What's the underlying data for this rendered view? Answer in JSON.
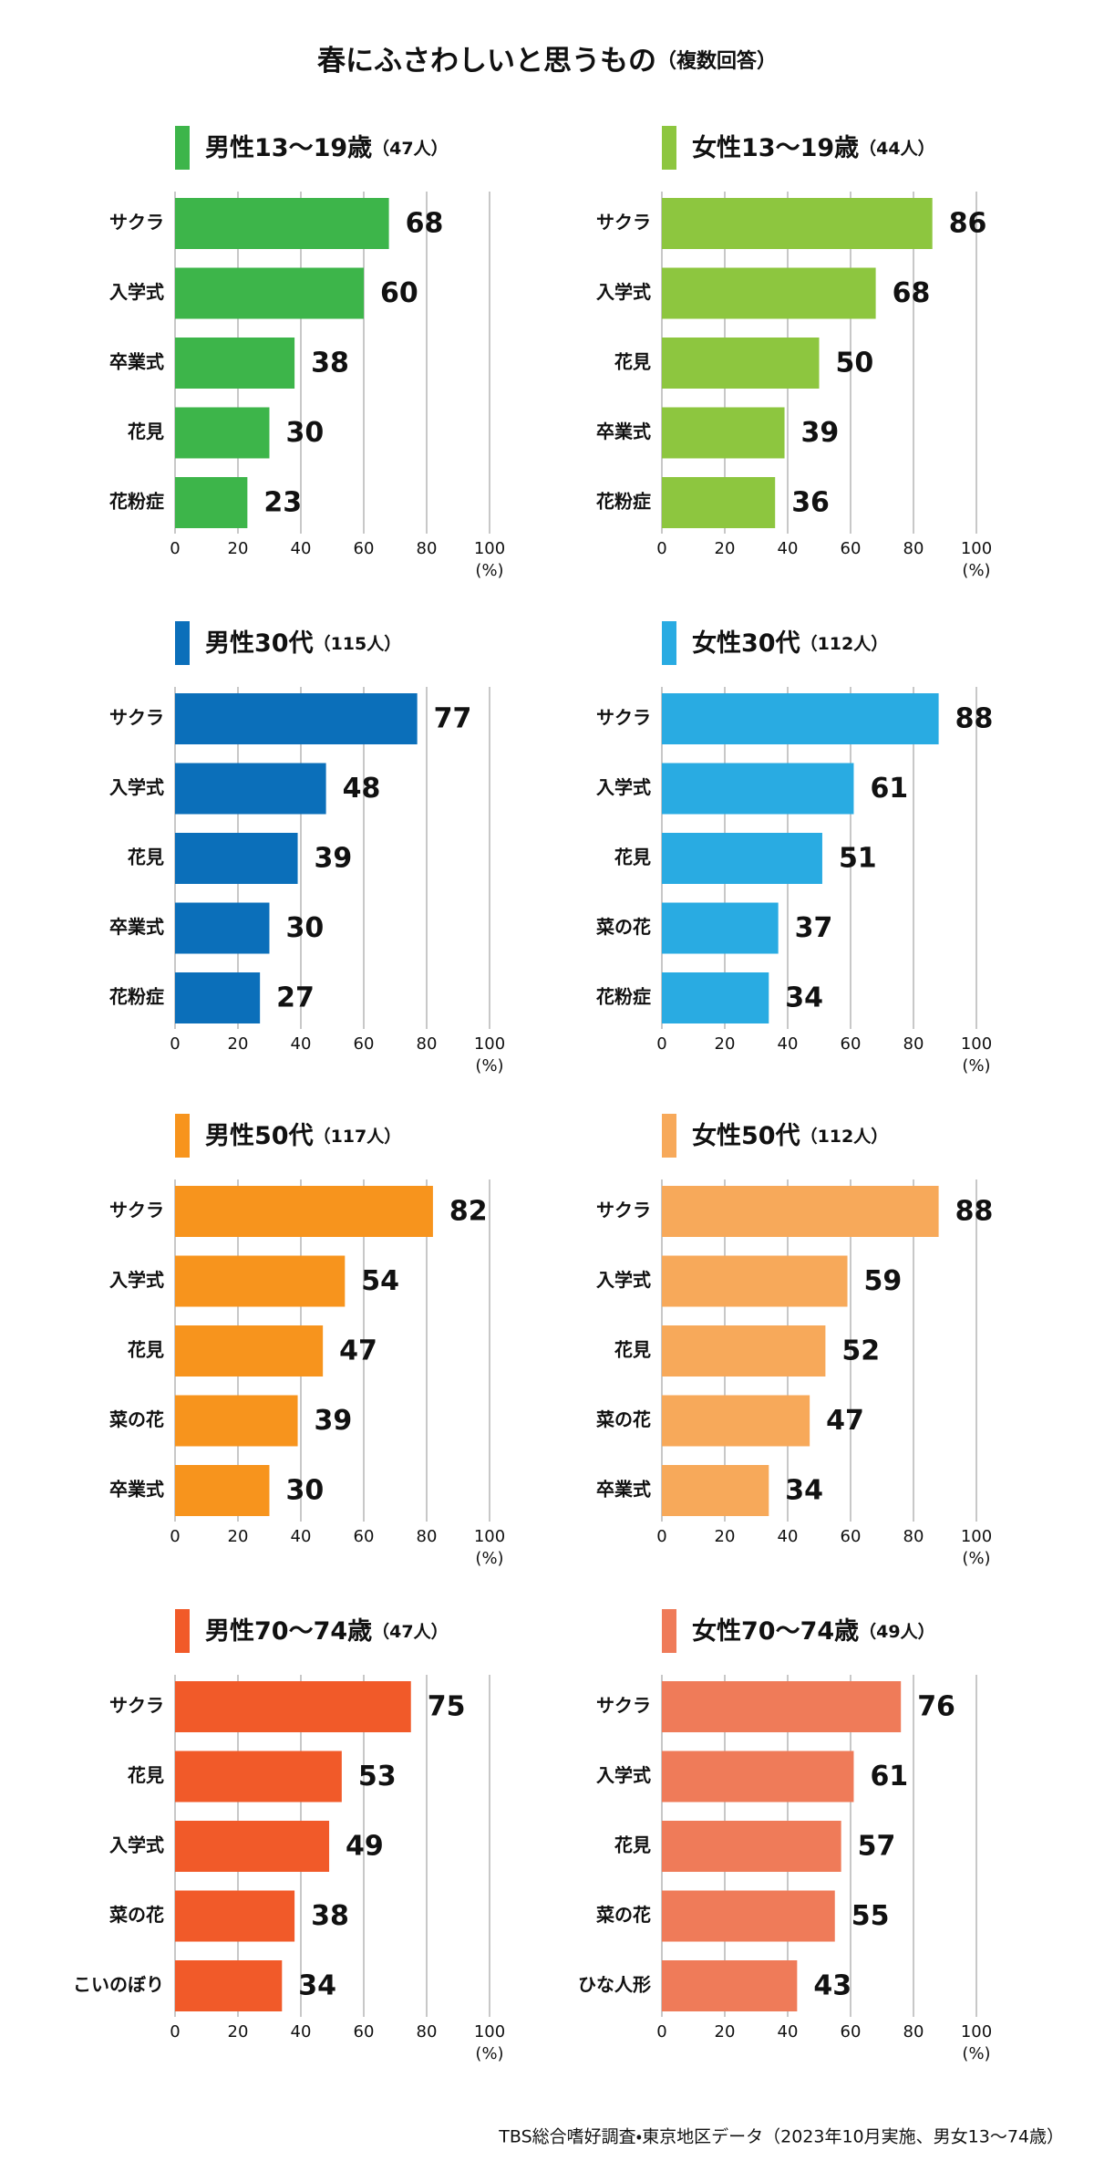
{
  "title": "春にふさわしいと思うもの",
  "subtitle": "（複数回答）",
  "source": "TBS総合嗜好調査・東京地区データ（2023年10月実施、男女13～74歳）",
  "chart_data": [
    {
      "type": "bar",
      "title": "男性13～19歳",
      "subtitle": "（47人）",
      "color": "#3db54a",
      "categories": [
        "サクラ",
        "入学式",
        "卒業式",
        "花見",
        "花粉症"
      ],
      "values": [
        68,
        60,
        38,
        30,
        23
      ],
      "xlim": [
        0,
        100
      ],
      "xticks": [
        0,
        20,
        40,
        60,
        80,
        100
      ],
      "xlabel": "(%)",
      "grid": true
    },
    {
      "type": "bar",
      "title": "女性13～19歳",
      "subtitle": "（44人）",
      "color": "#8dc63f",
      "categories": [
        "サクラ",
        "入学式",
        "花見",
        "卒業式",
        "花粉症"
      ],
      "values": [
        86,
        68,
        50,
        39,
        36
      ],
      "xlim": [
        0,
        100
      ],
      "xticks": [
        0,
        20,
        40,
        60,
        80,
        100
      ],
      "xlabel": "(%)",
      "grid": true
    },
    {
      "type": "bar",
      "title": "男性30代",
      "subtitle": "（115人）",
      "color": "#0b6fba",
      "categories": [
        "サクラ",
        "入学式",
        "花見",
        "卒業式",
        "花粉症"
      ],
      "values": [
        77,
        48,
        39,
        30,
        27
      ],
      "xlim": [
        0,
        100
      ],
      "xticks": [
        0,
        20,
        40,
        60,
        80,
        100
      ],
      "xlabel": "(%)",
      "grid": true
    },
    {
      "type": "bar",
      "title": "女性30代",
      "subtitle": "（112人）",
      "color": "#29abe2",
      "categories": [
        "サクラ",
        "入学式",
        "花見",
        "菜の花",
        "花粉症"
      ],
      "values": [
        88,
        61,
        51,
        37,
        34
      ],
      "xlim": [
        0,
        100
      ],
      "xticks": [
        0,
        20,
        40,
        60,
        80,
        100
      ],
      "xlabel": "(%)",
      "grid": true
    },
    {
      "type": "bar",
      "title": "男性50代",
      "subtitle": "（117人）",
      "color": "#f7941d",
      "categories": [
        "サクラ",
        "入学式",
        "花見",
        "菜の花",
        "卒業式"
      ],
      "values": [
        82,
        54,
        47,
        39,
        30
      ],
      "xlim": [
        0,
        100
      ],
      "xticks": [
        0,
        20,
        40,
        60,
        80,
        100
      ],
      "xlabel": "(%)",
      "grid": true
    },
    {
      "type": "bar",
      "title": "女性50代",
      "subtitle": "（112人）",
      "color": "#f7a95a",
      "categories": [
        "サクラ",
        "入学式",
        "花見",
        "菜の花",
        "卒業式"
      ],
      "values": [
        88,
        59,
        52,
        47,
        34
      ],
      "xlim": [
        0,
        100
      ],
      "xticks": [
        0,
        20,
        40,
        60,
        80,
        100
      ],
      "xlabel": "(%)",
      "grid": true
    },
    {
      "type": "bar",
      "title": "男性70～74歳",
      "subtitle": "（47人）",
      "color": "#f15a29",
      "categories": [
        "サクラ",
        "花見",
        "入学式",
        "菜の花",
        "こいのぼり"
      ],
      "values": [
        75,
        53,
        49,
        38,
        34
      ],
      "xlim": [
        0,
        100
      ],
      "xticks": [
        0,
        20,
        40,
        60,
        80,
        100
      ],
      "xlabel": "(%)",
      "grid": true
    },
    {
      "type": "bar",
      "title": "女性70～74歳",
      "subtitle": "（49人）",
      "color": "#ef7b59",
      "categories": [
        "サクラ",
        "入学式",
        "花見",
        "菜の花",
        "ひな人形"
      ],
      "values": [
        76,
        61,
        57,
        55,
        43
      ],
      "xlim": [
        0,
        100
      ],
      "xticks": [
        0,
        20,
        40,
        60,
        80,
        100
      ],
      "xlabel": "(%)",
      "grid": true
    }
  ]
}
